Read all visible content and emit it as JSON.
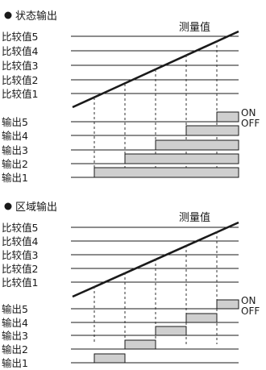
{
  "bullet": "●",
  "sections": [
    {
      "title": "状态输出",
      "measured_label": "测量值",
      "compare_labels": [
        "比较值5",
        "比较值4",
        "比较值3",
        "比较值2",
        "比较值1"
      ],
      "output_labels": [
        "输出5",
        "输出4",
        "输出3",
        "输出2",
        "输出1"
      ],
      "on_label": "ON",
      "off_label": "OFF"
    },
    {
      "title": "区域输出",
      "measured_label": "测量值",
      "compare_labels": [
        "比较值5",
        "比较值4",
        "比较值3",
        "比较值2",
        "比较值1"
      ],
      "output_labels": [
        "输出5",
        "输出4",
        "输出3",
        "输出2",
        "输出1"
      ],
      "on_label": "ON",
      "off_label": "OFF"
    }
  ],
  "colors": {
    "line": "#1a1a1a",
    "bar_fill": "#cfcfcf",
    "dashed": "#333333"
  }
}
